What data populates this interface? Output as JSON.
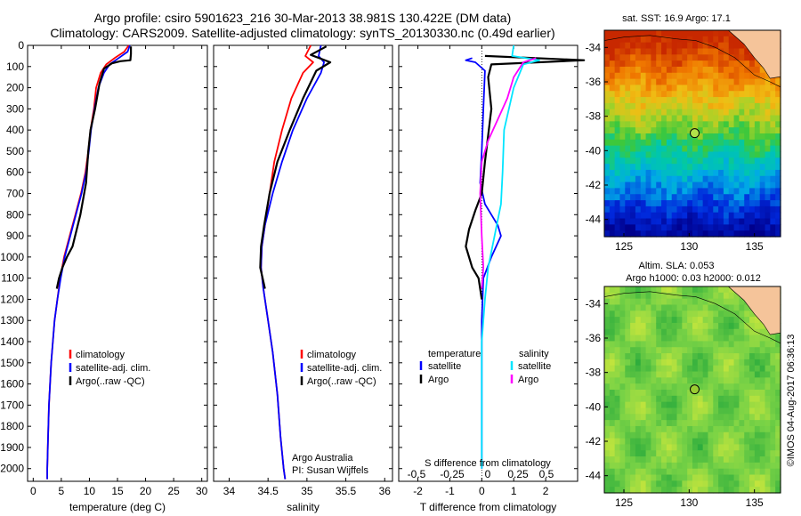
{
  "header": {
    "line1": "Argo profile: csiro 5901623_216 30-Mar-2013 38.981S 130.422E (DM data)",
    "line2": "Climatology: CARS2009. Satellite-adjusted climatology: synTS_20130330.nc (0.49d earlier)"
  },
  "colors": {
    "climatology": "#ff0000",
    "satellite": "#0000ff",
    "argo": "#000000",
    "sal_satellite": "#00e5ff",
    "sal_argo": "#ff00ff"
  },
  "chart_data": [
    {
      "type": "line",
      "panel": "temperature",
      "xlabel": "temperature (deg C)",
      "ylabel": "",
      "xlim": [
        -1,
        31
      ],
      "ylim": [
        2060,
        0
      ],
      "xticks": [
        "0",
        "5",
        "10",
        "15",
        "20",
        "25",
        "30"
      ],
      "yticks": [
        "0",
        "100",
        "200",
        "300",
        "400",
        "500",
        "600",
        "700",
        "800",
        "900",
        "1000",
        "1100",
        "1200",
        "1300",
        "1400",
        "1500",
        "1600",
        "1700",
        "1800",
        "1900",
        "2000"
      ],
      "legend": [
        "climatology",
        "satellite-adj. clim.",
        "Argo(..raw -QC)"
      ],
      "series": [
        {
          "name": "climatology",
          "color_key": "climatology",
          "x": [
            17.0,
            16.2,
            14.5,
            13.0,
            12.0,
            11.2,
            10.8,
            10.2,
            9.8,
            9.3,
            8.5,
            7.5,
            6.5,
            5.5,
            4.8,
            4.3,
            3.8,
            3.2,
            2.8,
            2.6,
            2.5,
            2.5
          ],
          "y": [
            0,
            30,
            60,
            90,
            130,
            200,
            300,
            400,
            500,
            600,
            700,
            800,
            900,
            1000,
            1100,
            1200,
            1300,
            1500,
            1700,
            1900,
            2000,
            2050
          ]
        },
        {
          "name": "satellite-adj. clim.",
          "color_key": "satellite",
          "x": [
            17.2,
            16.8,
            15.2,
            13.6,
            12.6,
            11.6,
            10.9,
            10.3,
            9.9,
            9.4,
            8.6,
            7.6,
            6.6,
            5.6,
            4.9,
            4.3,
            3.8,
            3.2,
            2.8,
            2.6,
            2.5,
            2.5
          ],
          "y": [
            0,
            30,
            60,
            90,
            130,
            200,
            300,
            400,
            500,
            600,
            700,
            800,
            900,
            1000,
            1100,
            1200,
            1300,
            1500,
            1700,
            1900,
            2000,
            2050
          ]
        },
        {
          "name": "Argo(..raw -QC)",
          "color_key": "argo",
          "x": [
            17.4,
            17.4,
            17.3,
            15.5,
            14.0,
            12.6,
            11.8,
            11.0,
            10.2,
            9.8,
            9.4,
            8.4,
            7.0,
            6.0,
            5.2,
            4.6,
            4.2
          ],
          "y": [
            5,
            40,
            70,
            75,
            85,
            110,
            180,
            300,
            400,
            500,
            650,
            800,
            950,
            1000,
            1050,
            1100,
            1150
          ]
        }
      ]
    },
    {
      "type": "line",
      "panel": "salinity",
      "xlabel": "salinity",
      "xlim": [
        33.8,
        36.1
      ],
      "ylim": [
        2060,
        0
      ],
      "xticks": [
        "34",
        "34.5",
        "35",
        "35.5",
        "36"
      ],
      "legend": [
        "climatology",
        "satellite-adj. clim.",
        "Argo(..raw -QC)"
      ],
      "annotation": [
        "Argo Australia",
        "PI: Susan Wijffels"
      ],
      "series": [
        {
          "name": "climatology",
          "color_key": "climatology",
          "x": [
            35.05,
            34.98,
            35.08,
            34.95,
            34.8,
            34.68,
            34.58,
            34.52,
            34.46,
            34.42,
            34.41,
            34.44,
            34.5,
            34.56,
            34.62,
            34.66,
            34.7,
            34.72
          ],
          "y": [
            0,
            50,
            80,
            130,
            250,
            400,
            550,
            700,
            850,
            950,
            1050,
            1150,
            1300,
            1450,
            1650,
            1850,
            2000,
            2050
          ]
        },
        {
          "name": "satellite-adj. clim.",
          "color_key": "satellite",
          "x": [
            35.18,
            35.15,
            35.22,
            35.18,
            35.0,
            34.82,
            34.68,
            34.56,
            34.46,
            34.42,
            34.41,
            34.44,
            34.5,
            34.56,
            34.62,
            34.66,
            34.7,
            34.72
          ],
          "y": [
            0,
            50,
            80,
            130,
            250,
            400,
            550,
            700,
            850,
            950,
            1050,
            1150,
            1300,
            1450,
            1650,
            1850,
            2000,
            2050
          ]
        },
        {
          "name": "Argo(..raw -QC)",
          "color_key": "argo",
          "x": [
            35.25,
            35.05,
            35.3,
            35.12,
            34.95,
            34.78,
            34.62,
            34.52,
            34.45,
            34.41,
            34.4,
            34.43,
            34.46
          ],
          "y": [
            5,
            45,
            80,
            120,
            250,
            400,
            550,
            700,
            850,
            950,
            1050,
            1100,
            1150
          ]
        }
      ]
    },
    {
      "type": "line",
      "panel": "difference",
      "xlabel": "T difference from climatology",
      "xlabel_top": "S difference from climatology",
      "xlim": [
        -2.6,
        3.0
      ],
      "xticks": [
        "-2",
        "-1",
        "0",
        "1",
        "2"
      ],
      "xticks_top": [
        "-0.5",
        "-0.25",
        "0",
        "0.25",
        "0.5"
      ],
      "ylim": [
        2060,
        0
      ],
      "legend_left_title": "temperature",
      "legend_right_title": "salinity",
      "legend_left": [
        "satellite",
        "Argo"
      ],
      "legend_right": [
        "satellite",
        "Argo"
      ],
      "series": [
        {
          "name": "satellite",
          "color_key": "satellite",
          "x": [
            -0.3,
            -0.5,
            -0.2,
            0.1,
            0.05,
            0.0,
            -0.05,
            0.1,
            0.3,
            0.5,
            0.6,
            0.3,
            0.05,
            0.0,
            0.0,
            0.0
          ],
          "y": [
            60,
            70,
            80,
            120,
            300,
            500,
            650,
            750,
            800,
            850,
            900,
            1000,
            1100,
            1300,
            1700,
            2000
          ]
        },
        {
          "name": "Argo",
          "color_key": "argo",
          "x": [
            0.1,
            3.2,
            0.3,
            0.2,
            0.3,
            0.1,
            0.0,
            -0.2,
            -0.4,
            -0.5,
            -0.3,
            -0.1,
            -0.05,
            0.0
          ],
          "y": [
            50,
            70,
            90,
            150,
            300,
            550,
            700,
            780,
            870,
            950,
            1050,
            1100,
            1150,
            1200
          ]
        },
        {
          "name": "satellite",
          "color_key": "sal_satellite",
          "x": [
            1.0,
            0.95,
            1.8,
            1.3,
            1.0,
            0.7,
            0.65,
            0.6,
            0.4,
            0.2,
            0.1,
            0.0,
            0.0,
            0.0
          ],
          "y": [
            0,
            50,
            70,
            90,
            200,
            400,
            600,
            750,
            900,
            1050,
            1200,
            1400,
            1700,
            2000
          ]
        },
        {
          "name": "Argo",
          "color_key": "sal_argo",
          "x": [
            1.7,
            1.3,
            1.0,
            0.8,
            0.5,
            0.2,
            0.0,
            -0.05,
            0.0,
            0.05,
            0.0
          ],
          "y": [
            60,
            80,
            150,
            250,
            350,
            450,
            550,
            700,
            900,
            1050,
            1150
          ]
        }
      ]
    },
    {
      "type": "heatmap",
      "panel": "sst_map",
      "title": "sat. SST: 16.9  Argo: 17.1",
      "xlim": [
        123.5,
        137
      ],
      "ylim": [
        -45,
        -33
      ],
      "xticks": [
        "125",
        "130",
        "135"
      ],
      "yticks": [
        "-34",
        "-36",
        "-38",
        "-40",
        "-42",
        "-44"
      ],
      "marker": {
        "lon": 130.422,
        "lat": -38.981
      }
    },
    {
      "type": "heatmap",
      "panel": "sla_map",
      "title_lines": [
        "Altim. SLA: 0.053",
        "Argo h1000: 0.03 h2000: 0.012"
      ],
      "xlim": [
        123.5,
        137
      ],
      "ylim": [
        -45,
        -33
      ],
      "xticks": [
        "125",
        "130",
        "135"
      ],
      "yticks": [
        "-34",
        "-36",
        "-38",
        "-40",
        "-42",
        "-44"
      ],
      "marker": {
        "lon": 130.422,
        "lat": -38.981
      }
    }
  ],
  "footer": {
    "credit": "©IMOS 04-Aug-2017 06:36:13"
  }
}
